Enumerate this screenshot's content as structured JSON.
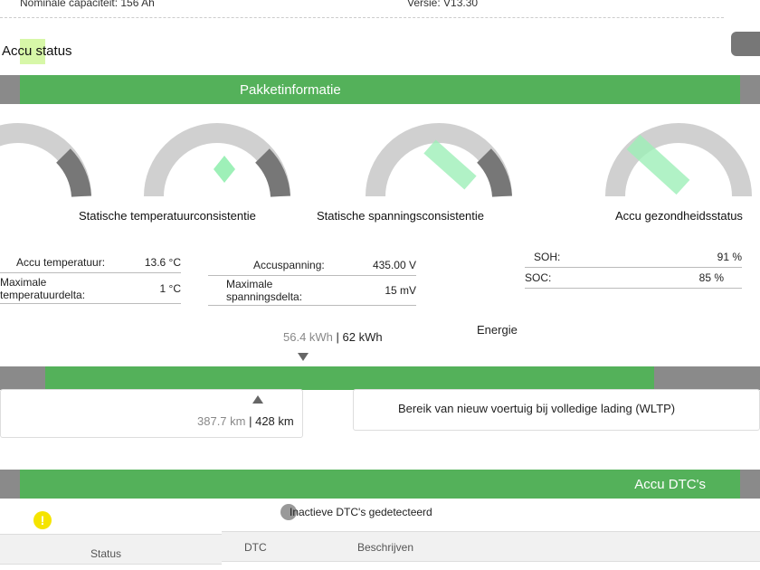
{
  "header": {
    "capacity": "Nominale capaciteit: 156 Ah",
    "version": "Versie: V13.30"
  },
  "section": {
    "title": "Accu status",
    "icon": "car-battery-icon"
  },
  "pack": {
    "bar_title": "Pakketinformatie",
    "gauges": [
      {
        "title": ""
      },
      {
        "title": "Statische temperatuurconsistentie"
      },
      {
        "title": "Statische spanningsconsistentie"
      },
      {
        "title": "Accu gezondheidsstatus"
      }
    ],
    "temperature": [
      {
        "label": "Accu temperatuur:",
        "value": "13.6 °C"
      },
      {
        "label": "Maximale temperatuurdelta:",
        "value": "1 °C"
      }
    ],
    "voltage": [
      {
        "label": "Accuspanning:",
        "value": "435.00 V"
      },
      {
        "label": "Maximale spanningsdelta:",
        "value": "15 mV"
      }
    ],
    "health": [
      {
        "label": "SOH:",
        "value": "91 %"
      },
      {
        "label": "SOC:",
        "value": "85 %"
      }
    ]
  },
  "energy": {
    "title": "Energie",
    "energy_value": "56.4 kWh",
    "energy_total": "62 kWh",
    "range_value": "387.7 km",
    "range_total": "428 km",
    "range_label": "Bereik van nieuw voertuig bij volledige lading (WLTP)",
    "fill_percent": 91,
    "colors": {
      "fill": "#54b15a",
      "track": "#8a8a8a"
    }
  },
  "dtc": {
    "bar_title": "Accu DTC's",
    "status_text": "Inactieve DTC's gedetecteerd",
    "columns": [
      "Status",
      "DTC",
      "Beschrijven"
    ],
    "warning_color": "#f5e400"
  },
  "colors": {
    "accent": "#54b15a",
    "gray": "#8a8a8a"
  }
}
